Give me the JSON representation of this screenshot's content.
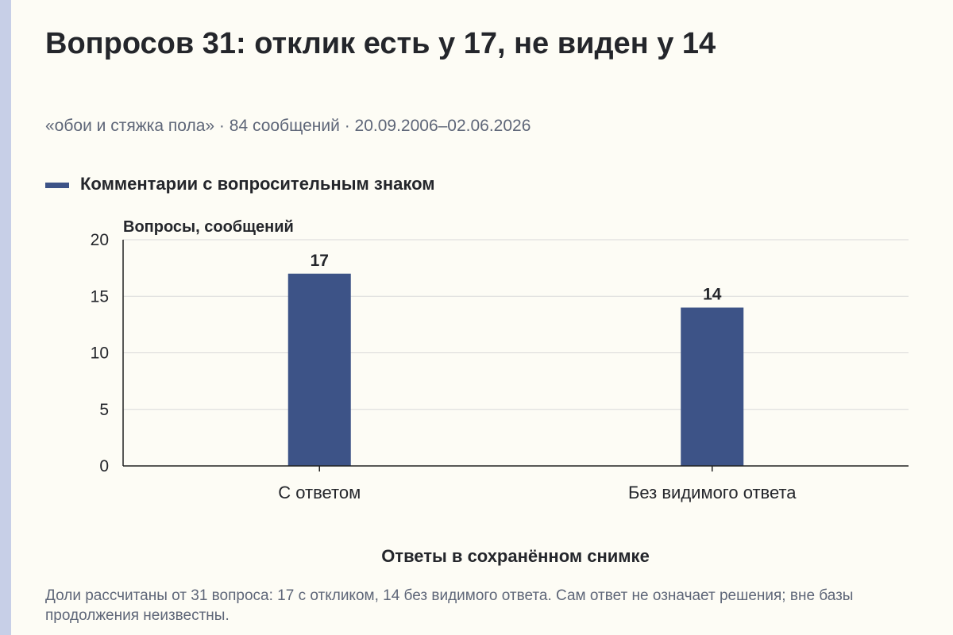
{
  "title": "Вопросов 31: отклик есть у 17, не виден у 14",
  "subtitle": "«обои и стяжка пола» · 84 сообщений · 20.09.2006–02.06.2026",
  "footnote": "Доли рассчитаны от 31 вопроса: 17 с откликом, 14 без видимого ответа. Сам ответ не означает решения; вне базы продолжения неизвестны.",
  "colors": {
    "bar": "#3d5387",
    "background": "#fdfcf5",
    "accent_strip": "#c7cfe7"
  },
  "chart_data": {
    "type": "bar",
    "categories": [
      "С ответом",
      "Без видимого ответа"
    ],
    "series": [
      {
        "name": "Комментарии с вопросительным знаком",
        "values": [
          17,
          14
        ]
      }
    ],
    "ylabel": "Вопросы, сообщений",
    "xlabel": "Ответы в сохранённом снимке",
    "ylim": [
      0,
      20
    ],
    "yticks": [
      0,
      5,
      10,
      15,
      20
    ],
    "data_labels": true,
    "grid": true,
    "legend": "top-left"
  }
}
